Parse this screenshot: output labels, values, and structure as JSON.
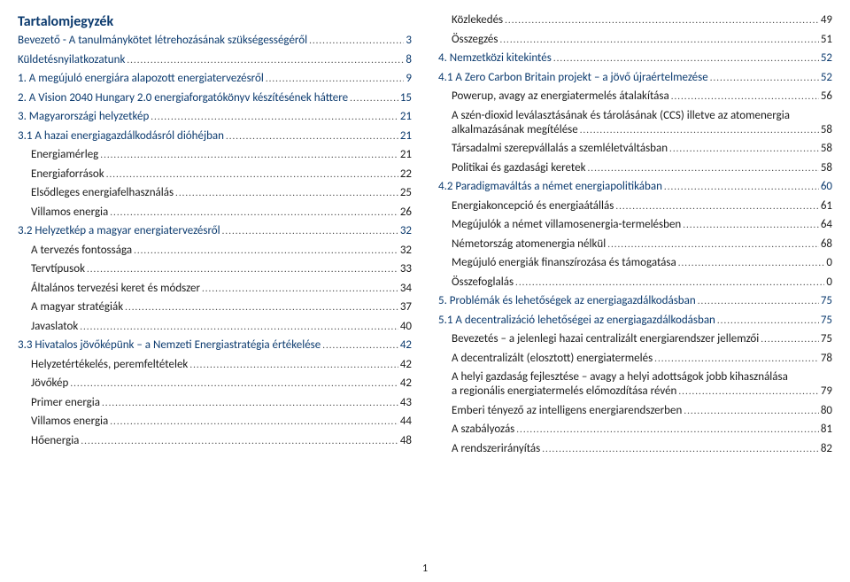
{
  "title": "Tartalomjegyzék",
  "page_number": "1",
  "left": [
    {
      "label": "Bevezető - A tanulmánykötet létrehozásának szükségességéről",
      "page": "3",
      "lvl": 1,
      "indent": 0
    },
    {
      "label": "Küldetésnyilatkozatunk",
      "page": "8",
      "lvl": 1,
      "indent": 0
    },
    {
      "label": "1. A megújuló energiára alapozott energiatervezésről",
      "page": "9",
      "lvl": 1,
      "indent": 0
    },
    {
      "label": "2. A Vision 2040 Hungary 2.0 energiaforgatókönyv készítésének háttere",
      "page": "15",
      "lvl": 1,
      "indent": 0
    },
    {
      "label": "3. Magyarországi helyzetkép",
      "page": "21",
      "lvl": 1,
      "indent": 0
    },
    {
      "label": "3.1 A hazai energiagazdálkodásról dióhéjban",
      "page": "21",
      "lvl": 1,
      "indent": 0
    },
    {
      "label": "Energiamérleg",
      "page": "21",
      "lvl": 0,
      "indent": 1
    },
    {
      "label": "Energiaforrások",
      "page": "22",
      "lvl": 0,
      "indent": 1
    },
    {
      "label": "Elsődleges energiafelhasználás",
      "page": "25",
      "lvl": 0,
      "indent": 1
    },
    {
      "label": "Villamos energia",
      "page": "26",
      "lvl": 0,
      "indent": 1
    },
    {
      "label": "3.2 Helyzetkép a magyar energiatervezésről",
      "page": "32",
      "lvl": 1,
      "indent": 0
    },
    {
      "label": "A tervezés fontossága",
      "page": "32",
      "lvl": 0,
      "indent": 1
    },
    {
      "label": "Tervtípusok",
      "page": "33",
      "lvl": 0,
      "indent": 1
    },
    {
      "label": "Általános tervezési keret és módszer",
      "page": "34",
      "lvl": 0,
      "indent": 1
    },
    {
      "label": "A magyar stratégiák",
      "page": "37",
      "lvl": 0,
      "indent": 1
    },
    {
      "label": "Javaslatok",
      "page": "40",
      "lvl": 0,
      "indent": 1
    },
    {
      "label": "3.3 Hivatalos jövőképünk – a Nemzeti Energiastratégia értékelése",
      "page": "42",
      "lvl": 1,
      "indent": 0
    },
    {
      "label": "Helyzetértékelés, peremfeltételek",
      "page": "42",
      "lvl": 0,
      "indent": 1
    },
    {
      "label": "Jövőkép",
      "page": "42",
      "lvl": 0,
      "indent": 1
    },
    {
      "label": "Primer energia",
      "page": "43",
      "lvl": 0,
      "indent": 1
    },
    {
      "label": "Villamos energia",
      "page": "44",
      "lvl": 0,
      "indent": 1
    },
    {
      "label": "Hőenergia",
      "page": "48",
      "lvl": 0,
      "indent": 1
    }
  ],
  "right": [
    {
      "label": "Közlekedés",
      "page": "49",
      "lvl": 0,
      "indent": 1
    },
    {
      "label": "Összegzés",
      "page": "51",
      "lvl": 0,
      "indent": 1
    },
    {
      "label": "4. Nemzetközi kitekintés",
      "page": "52",
      "lvl": 1,
      "indent": 0
    },
    {
      "label": "4.1 A Zero Carbon Britain projekt – a jövő újraértelmezése",
      "page": "52",
      "lvl": 1,
      "indent": 0
    },
    {
      "label": "Powerup, avagy az energiatermelés átalakítása",
      "page": "56",
      "lvl": 0,
      "indent": 1
    },
    {
      "label": "A szén-dioxid leválasztásának és tárolásának (CCS) illetve az atomenergia",
      "page": "",
      "lvl": 0,
      "indent": 1,
      "wrap": true
    },
    {
      "label": "alkalmazásának megítélése",
      "page": "58",
      "lvl": 0,
      "indent": 2
    },
    {
      "label": "Társadalmi szerepvállalás a szemléletváltásban",
      "page": "58",
      "lvl": 0,
      "indent": 1
    },
    {
      "label": "Politikai és gazdasági keretek",
      "page": "58",
      "lvl": 0,
      "indent": 1
    },
    {
      "label": "4.2 Paradigmaváltás a német energiapolitikában",
      "page": "60",
      "lvl": 1,
      "indent": 0
    },
    {
      "label": "Energiakoncepció és energiaátállás",
      "page": "61",
      "lvl": 0,
      "indent": 1
    },
    {
      "label": "Megújulók a német villamosenergia-termelésben",
      "page": "64",
      "lvl": 0,
      "indent": 1
    },
    {
      "label": "Németország atomenergia nélkül",
      "page": "68",
      "lvl": 0,
      "indent": 1
    },
    {
      "label": "Megújuló energiák finanszírozása és támogatása",
      "page": "0",
      "lvl": 0,
      "indent": 1
    },
    {
      "label": "Összefoglalás",
      "page": "0",
      "lvl": 0,
      "indent": 1
    },
    {
      "label": "5. Problémák és lehetőségek az energiagazdálkodásban",
      "page": "75",
      "lvl": 1,
      "indent": 0
    },
    {
      "label": "5.1 A decentralizáció lehetőségei az energiagazdálkodásban",
      "page": "75",
      "lvl": 1,
      "indent": 0
    },
    {
      "label": "Bevezetés – a jelenlegi hazai centralizált energiarendszer jellemzői",
      "page": "75",
      "lvl": 0,
      "indent": 1
    },
    {
      "label": "A decentralizált (elosztott) energiatermelés",
      "page": "78",
      "lvl": 0,
      "indent": 1
    },
    {
      "label": "A helyi gazdaság fejlesztése – avagy a helyi adottságok jobb kihasználása",
      "page": "",
      "lvl": 0,
      "indent": 1,
      "wrap": true
    },
    {
      "label": "a regionális energiatermelés előmozdítása révén",
      "page": "79",
      "lvl": 0,
      "indent": 1
    },
    {
      "label": "Emberi tényező az intelligens energiarendszerben",
      "page": "80",
      "lvl": 0,
      "indent": 1
    },
    {
      "label": "A szabályozás",
      "page": "81",
      "lvl": 0,
      "indent": 1
    },
    {
      "label": "A rendszerirányítás",
      "page": "82",
      "lvl": 0,
      "indent": 1
    }
  ]
}
